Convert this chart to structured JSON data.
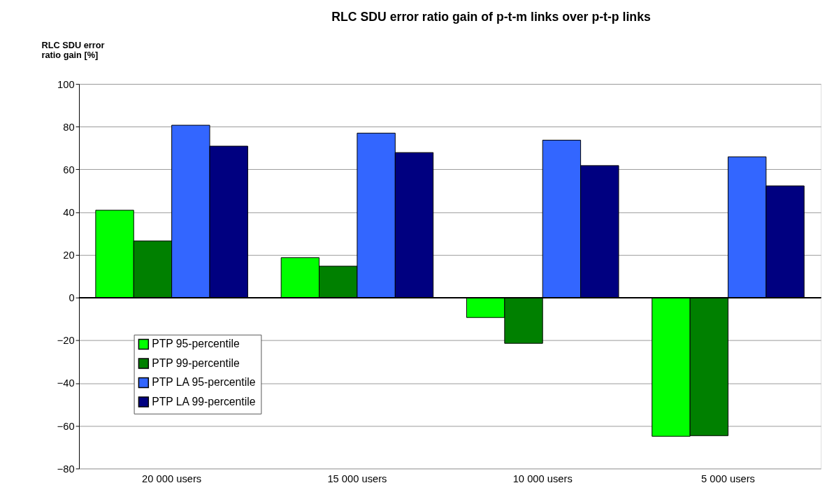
{
  "chart_data": {
    "type": "bar",
    "title": "RLC SDU error ratio gain of p-t-m links over p-t-p links",
    "ylabel": "RLC SDU error ratio gain [%]",
    "categories": [
      "20 000 users",
      "15 000 users",
      "10 000 users",
      "5 000 users"
    ],
    "series": [
      {
        "name": "PTP 95-percentile",
        "color": "#00ff00",
        "values": [
          40.9,
          18.7,
          -9.3,
          -64.9
        ]
      },
      {
        "name": "PTP 99-percentile",
        "color": "#008000",
        "values": [
          26.5,
          14.7,
          -21.4,
          -64.6
        ]
      },
      {
        "name": "PTP LA 95-percentile",
        "color": "#3366ff",
        "values": [
          80.7,
          77.0,
          73.7,
          65.9
        ]
      },
      {
        "name": "PTP LA 99-percentile",
        "color": "#000080",
        "values": [
          70.9,
          67.9,
          61.8,
          52.3
        ]
      }
    ],
    "ylim": [
      -80,
      100
    ],
    "yticks": [
      -80,
      -60,
      -40,
      -20,
      0,
      20,
      40,
      60,
      80,
      100
    ],
    "grid": "y",
    "legend": "bottom left"
  }
}
